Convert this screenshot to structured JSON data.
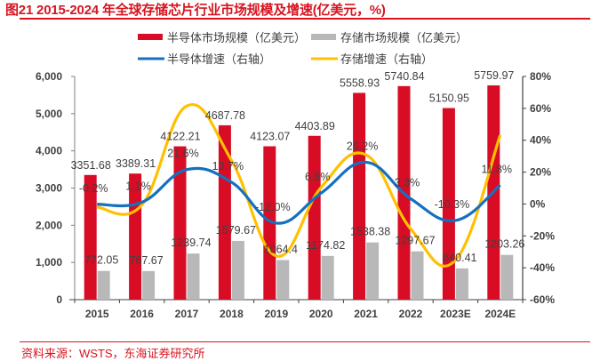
{
  "title": "图21  2015-2024 年全球存储芯片行业市场规模及增速(亿美元，%)",
  "source": "资料来源：WSTS，东海证券研究所",
  "colors": {
    "semi_bar": "#d80c24",
    "storage_bar": "#b8b8b8",
    "semi_line": "#1470c0",
    "storage_line": "#ffc000",
    "title": "#d7141f",
    "axis": "#404040"
  },
  "chart_data": {
    "type": "bar",
    "title": "2015-2024 年全球存储芯片行业市场规模及增速(亿美元，%)",
    "categories": [
      "2015",
      "2016",
      "2017",
      "2018",
      "2019",
      "2020",
      "2021",
      "2022",
      "2023E",
      "2024E"
    ],
    "xlabel": "",
    "ylabel": "",
    "ylim": [
      0,
      6000
    ],
    "yticks": [
      0,
      1000,
      2000,
      3000,
      4000,
      5000,
      6000
    ],
    "ytick_labels": [
      "0",
      "1,000",
      "2,000",
      "3,000",
      "4,000",
      "5,000",
      "6,000"
    ],
    "y2lim": [
      -60,
      80
    ],
    "y2ticks": [
      -60,
      -40,
      -20,
      0,
      20,
      40,
      60,
      80
    ],
    "y2tick_labels": [
      "-60%",
      "-40%",
      "-20%",
      "0%",
      "20%",
      "40%",
      "60%",
      "80%"
    ],
    "grid": false,
    "legend_position": "top",
    "series": [
      {
        "name": "半导体市场规模（亿美元）",
        "type": "bar",
        "axis": "left",
        "values": [
          3351.68,
          3389.31,
          4122.21,
          4687.78,
          4123.07,
          4403.89,
          5558.93,
          5740.84,
          5150.95,
          5759.97
        ],
        "labels": [
          "3351.68",
          "3389.31",
          "4122.21",
          "4687.78",
          "4123.07",
          "4403.89",
          "5558.93",
          "5740.84",
          "5150.95",
          "5759.97"
        ]
      },
      {
        "name": "存储市场规模（亿美元）",
        "type": "bar",
        "axis": "left",
        "values": [
          772.05,
          767.67,
          1239.74,
          1579.67,
          1064.4,
          1174.82,
          1538.38,
          1297.67,
          840.41,
          1203.26
        ],
        "labels": [
          "772.05",
          "767.67",
          "1239.74",
          "1579.67",
          "1064.4",
          "1174.82",
          "1538.38",
          "1297.67",
          "840.41",
          "1203.26"
        ]
      },
      {
        "name": "半导体增速（右轴）",
        "type": "line",
        "axis": "right",
        "values": [
          -0.2,
          1.1,
          21.6,
          13.7,
          -12.0,
          6.8,
          26.2,
          3.3,
          -10.3,
          11.8
        ],
        "labels": [
          "-0.2%",
          "1.1%",
          "21.6%",
          "13.7%",
          "-12.0%",
          "6.8%",
          "26.2%",
          "3.3%",
          "-10.3%",
          "11.8%"
        ]
      },
      {
        "name": "存储增速（右轴）",
        "type": "line",
        "axis": "right",
        "values": [
          -2.0,
          -0.6,
          61.5,
          27.4,
          -32.6,
          10.4,
          30.9,
          -15.6,
          -35.2,
          43.2
        ]
      }
    ]
  }
}
